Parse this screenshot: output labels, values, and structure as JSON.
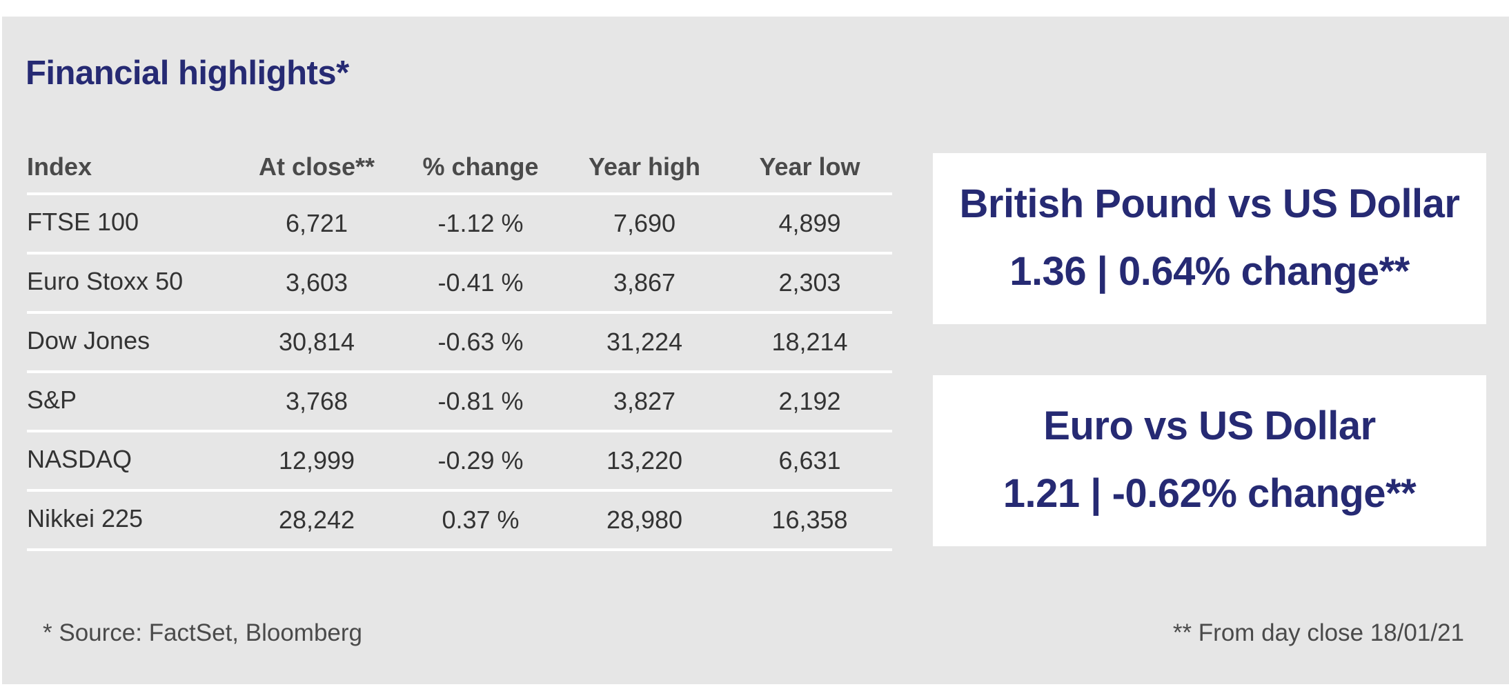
{
  "title": "Financial highlights*",
  "table": {
    "headers": [
      "Index",
      "At close**",
      "% change",
      "Year high",
      "Year low"
    ],
    "rows": [
      {
        "index": "FTSE 100",
        "close": "6,721",
        "change": "-1.12 %",
        "high": "7,690",
        "low": "4,899"
      },
      {
        "index": "Euro Stoxx 50",
        "close": "3,603",
        "change": "-0.41 %",
        "high": "3,867",
        "low": "2,303"
      },
      {
        "index": "Dow Jones",
        "close": "30,814",
        "change": "-0.63 %",
        "high": "31,224",
        "low": "18,214"
      },
      {
        "index": "S&P",
        "close": "3,768",
        "change": "-0.81 %",
        "high": "3,827",
        "low": "2,192"
      },
      {
        "index": "NASDAQ",
        "close": "12,999",
        "change": "-0.29 %",
        "high": "13,220",
        "low": "6,631"
      },
      {
        "index": "Nikkei 225",
        "close": "28,242",
        "change": "0.37 %",
        "high": "28,980",
        "low": "16,358"
      }
    ]
  },
  "currency_boxes": [
    {
      "title": "British Pound vs US Dollar",
      "value": "1.36 | 0.64% change**"
    },
    {
      "title": "Euro vs US Dollar",
      "value": "1.21 | -0.62% change**"
    }
  ],
  "footnotes": {
    "source": "* Source: FactSet, Bloomberg",
    "day_close": "** From day close 18/01/21"
  },
  "colors": {
    "panel_background": "#e6e6e6",
    "title_navy": "#262a73",
    "text_gray": "#333333"
  }
}
